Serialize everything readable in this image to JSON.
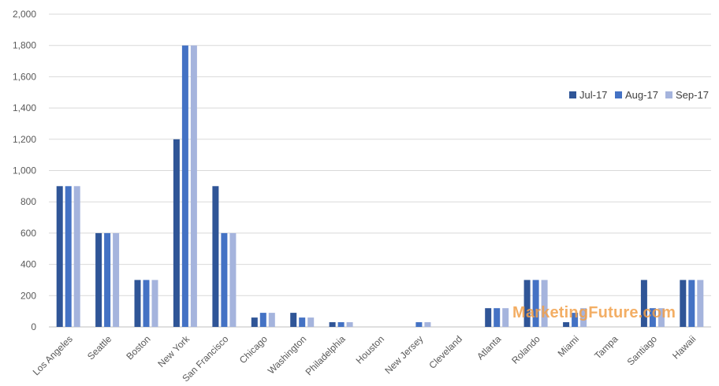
{
  "chart_data": {
    "type": "bar",
    "categories": [
      "Los Angeles",
      "Seattle",
      "Boston",
      "New York",
      "San Francisco",
      "Chicago",
      "Washington",
      "Philadelphia",
      "Houston",
      "New Jersey",
      "Cleveland",
      "Atlanta",
      "Rolando",
      "Miami",
      "Tampa",
      "Santiago",
      "Hawaii"
    ],
    "series": [
      {
        "name": "Jul-17",
        "color": "#2f5597",
        "values": [
          900,
          600,
          300,
          1200,
          900,
          60,
          90,
          30,
          0,
          0,
          0,
          120,
          300,
          30,
          0,
          300,
          300
        ]
      },
      {
        "name": "Aug-17",
        "color": "#4472c4",
        "values": [
          900,
          600,
          300,
          1800,
          600,
          90,
          60,
          30,
          0,
          30,
          0,
          120,
          300,
          90,
          0,
          120,
          300
        ]
      },
      {
        "name": "Sep-17",
        "color": "#a5b4dd",
        "values": [
          900,
          600,
          300,
          1800,
          600,
          90,
          60,
          30,
          0,
          30,
          0,
          120,
          300,
          120,
          0,
          120,
          300
        ]
      }
    ],
    "ylim": [
      0,
      2000
    ],
    "yticks": [
      0,
      200,
      400,
      600,
      800,
      1000,
      1200,
      1400,
      1600,
      1800,
      2000
    ],
    "ytick_labels": [
      "0",
      "200",
      "400",
      "600",
      "800",
      "1,000",
      "1,200",
      "1,400",
      "1,600",
      "1,800",
      "2,000"
    ],
    "grid": true,
    "legend_position": "right"
  },
  "watermark": "MarketingFuture.com"
}
